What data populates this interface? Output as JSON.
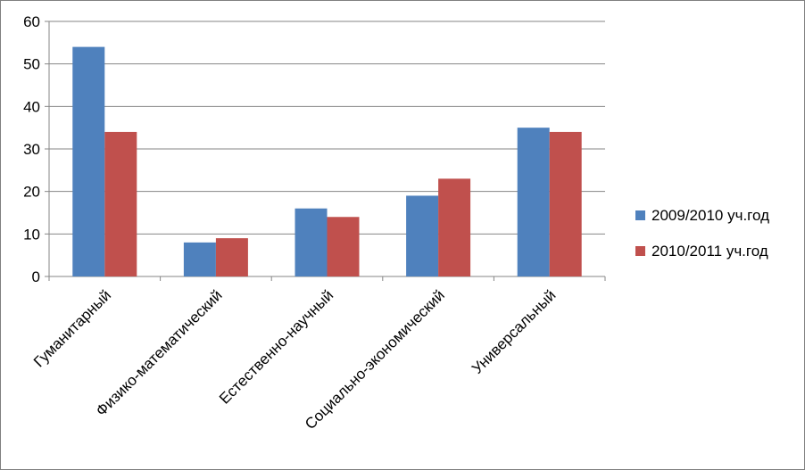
{
  "chart_data": {
    "type": "bar",
    "categories": [
      "Гуманитарный",
      "Физико-математический",
      "Естественно-научный",
      "Социально-экономический",
      "Универсальный"
    ],
    "series": [
      {
        "name": "2009/2010 уч.год",
        "values": [
          54,
          8,
          16,
          19,
          35
        ],
        "color": "#4f81bd"
      },
      {
        "name": "2010/2011 уч.год",
        "values": [
          34,
          9,
          14,
          23,
          34
        ],
        "color": "#c0504d"
      }
    ],
    "ylim": [
      0,
      60
    ],
    "yticks": [
      0,
      10,
      20,
      30,
      40,
      50,
      60
    ],
    "grid": true,
    "legend": "right"
  }
}
